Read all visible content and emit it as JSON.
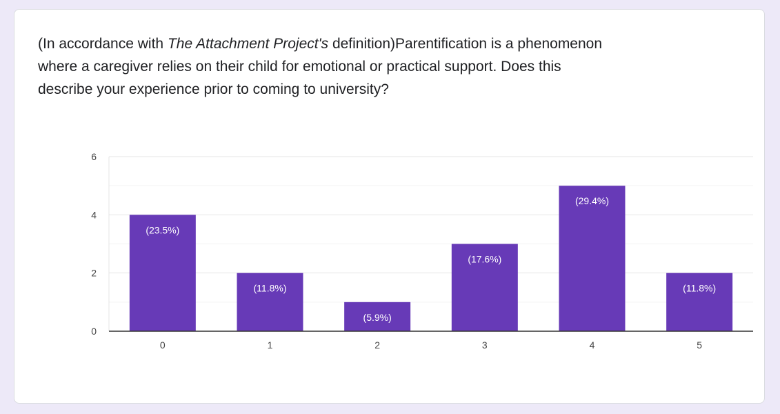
{
  "question": {
    "prefix": "(In accordance with ",
    "italic": "The Attachment Project's",
    "suffix": " definition)Parentification is a phenomenon where a caregiver relies on their child for emotional or practical support. Does this describe your experience prior to coming to university?"
  },
  "colors": {
    "bar": "#673ab7",
    "background": "#ede9f8",
    "card": "#ffffff"
  },
  "chart_data": {
    "type": "bar",
    "categories": [
      "0",
      "1",
      "2",
      "3",
      "4",
      "5"
    ],
    "values": [
      4,
      2,
      1,
      3,
      5,
      2
    ],
    "data_labels": [
      "(23.5%)",
      "(11.8%)",
      "(5.9%)",
      "(17.6%)",
      "(29.4%)",
      "(11.8%)"
    ],
    "y_ticks": [
      "0",
      "2",
      "4",
      "6"
    ],
    "ylim": [
      0,
      6
    ],
    "grid": true,
    "title": "",
    "xlabel": "",
    "ylabel": ""
  }
}
